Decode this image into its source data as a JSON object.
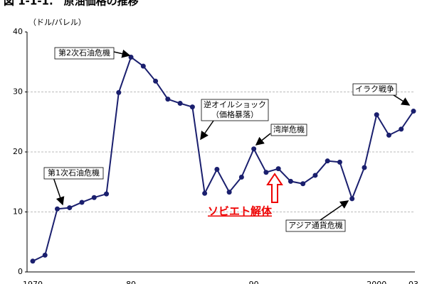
{
  "chart_data": {
    "type": "line",
    "title": "図 1-1-1.　原油価格の推移",
    "y_label": "（ドル/バレル）",
    "categories": [
      "1970",
      null,
      null,
      null,
      null,
      null,
      null,
      null,
      "80",
      null,
      null,
      null,
      null,
      null,
      null,
      null,
      null,
      null,
      "90",
      null,
      null,
      null,
      null,
      null,
      null,
      null,
      null,
      null,
      "2000",
      null,
      null,
      "03"
    ],
    "series": [
      {
        "color": "#1a1f6e",
        "values": [
          1.8,
          2.8,
          10.5,
          10.7,
          11.6,
          12.4,
          13.0,
          29.9,
          35.8,
          34.3,
          31.8,
          28.8,
          28.1,
          27.5,
          13.1,
          17.1,
          13.3,
          15.8,
          20.5,
          16.6,
          17.2,
          15.1,
          14.7,
          16.1,
          18.5,
          18.3,
          12.2,
          17.4,
          26.2,
          22.8,
          23.8,
          26.8
        ]
      }
    ],
    "ylim": [
      0,
      40
    ],
    "yticks": [
      0,
      10,
      20,
      30,
      40
    ],
    "grid": true,
    "annotations": [
      {
        "lines": [
          "第1次石油危機"
        ]
      },
      {
        "lines": [
          "第2次石油危機"
        ]
      },
      {
        "lines": [
          "逆オイルショック",
          "（価格暴落）"
        ]
      },
      {
        "lines": [
          "湾岸危機"
        ]
      },
      {
        "lines": [
          "イラク戦争"
        ]
      },
      {
        "lines": [
          "アジア通貨危機"
        ]
      }
    ],
    "highlight": "ソビエト解体"
  }
}
